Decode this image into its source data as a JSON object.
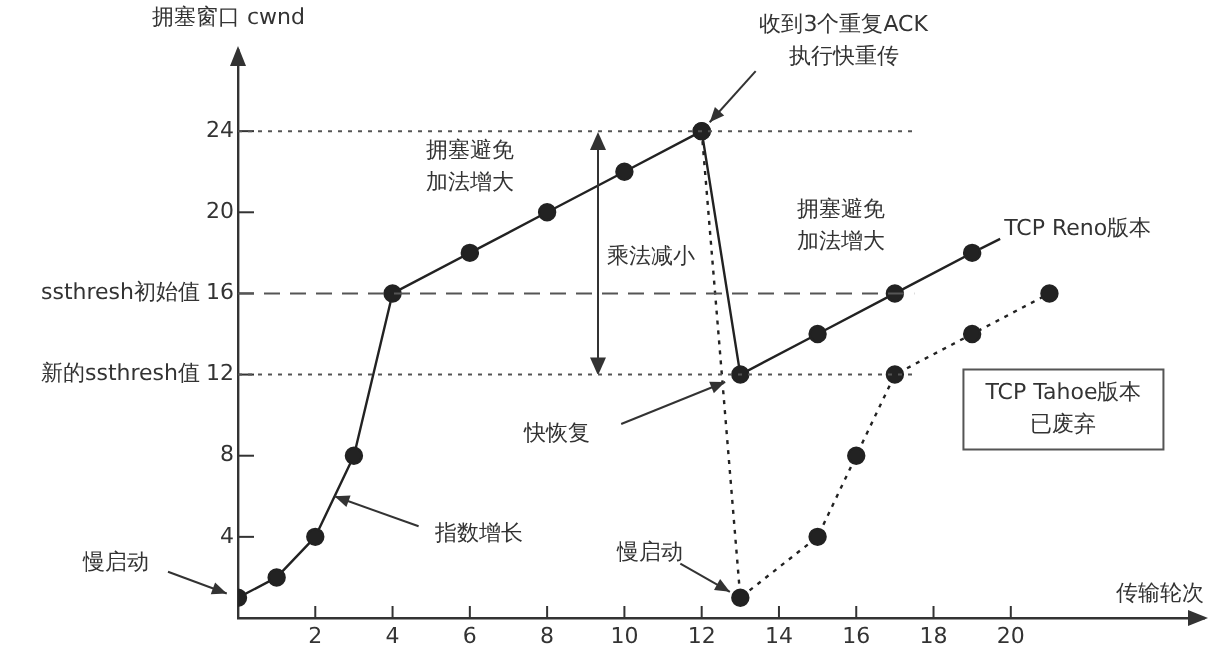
{
  "chart_data": {
    "type": "line",
    "ylabel": "拥塞窗口 cwnd",
    "xlabel": "传输轮次",
    "xlim": [
      0,
      25
    ],
    "xticks": [
      2,
      4,
      6,
      8,
      10,
      12,
      14,
      16,
      18,
      20
    ],
    "ylim": [
      0,
      28
    ],
    "yticks": [
      4,
      8,
      12,
      16,
      20,
      24
    ],
    "grid": false,
    "legend": false,
    "marker": "circle",
    "series": [
      {
        "name": "TCP Reno版本",
        "color": "#222222",
        "line_style": "solid",
        "x": [
          0,
          1,
          2,
          3,
          4,
          6,
          8,
          10,
          12,
          13,
          15,
          17,
          19
        ],
        "values": [
          1,
          2,
          4,
          8,
          16,
          18,
          20,
          22,
          24,
          12,
          14,
          16,
          18
        ]
      },
      {
        "name": "TCP Tahoe版本已废弃",
        "color": "#222222",
        "line_style": "dotted",
        "x": [
          12,
          13,
          15,
          16,
          17,
          19,
          21
        ],
        "values": [
          24,
          1,
          4,
          8,
          12,
          14,
          16
        ]
      }
    ],
    "ref_lines": [
      {
        "axis": "y",
        "value": 24,
        "line_style": "dotted",
        "color": "#555555"
      },
      {
        "axis": "y",
        "value": 16,
        "label": "ssthresh初始值",
        "line_style": "dashed",
        "color": "#555555"
      },
      {
        "axis": "y",
        "value": 12,
        "label": "新的ssthresh值",
        "line_style": "dotted",
        "color": "#555555"
      }
    ],
    "annotations": [
      {
        "text": "收到3个重复ACK执行快重传",
        "x": 12,
        "y": 24
      },
      "拥塞避免加法增大",
      "乘法减小",
      "拥塞避免加法增大",
      "快恢复",
      {
        "text": "慢启动",
        "x": 0,
        "y": 1
      },
      {
        "text": "指数增长",
        "x": 2.5,
        "y": 6
      },
      {
        "text": "慢启动",
        "x": 13,
        "y": 1
      }
    ]
  }
}
